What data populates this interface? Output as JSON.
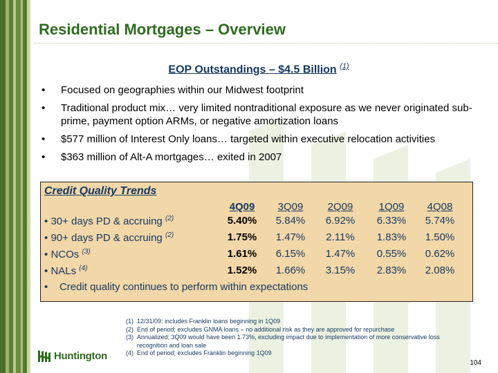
{
  "slide": {
    "title": "Residential Mortgages – Overview",
    "subtitle": "EOP Outstandings – $4.5 Billion",
    "subtitle_note": "(1)",
    "bullets": [
      "Focused on geographies within our Midwest footprint",
      "Traditional product mix… very limited nontraditional exposure as we never originated sub-prime, payment option ARMs, or negative amortization loans",
      "$577 million of Interest Only loans… targeted within executive relocation activities",
      "$363 million of Alt-A mortgages… exited in 2007"
    ],
    "bullet_glyph": "•",
    "page_number": "104"
  },
  "credit": {
    "title": "Credit Quality Trends",
    "columns": [
      "4Q09",
      "3Q09",
      "2Q09",
      "1Q09",
      "4Q08"
    ],
    "rows": [
      {
        "label": "30+ days PD & accruing",
        "note": "(2)",
        "values": [
          "5.40%",
          "5.84%",
          "6.92%",
          "6.33%",
          "5.74%"
        ]
      },
      {
        "label": "90+ days PD & accruing",
        "note": "(2)",
        "values": [
          "1.75%",
          "1.47%",
          "2.11%",
          "1.83%",
          "1.50%"
        ]
      },
      {
        "label": "NCOs",
        "note": "(3)",
        "values": [
          "1.61%",
          "6.15%",
          "1.47%",
          "0.55%",
          "0.62%"
        ]
      },
      {
        "label": "NALs",
        "note": "(4)",
        "values": [
          "1.52%",
          "1.66%",
          "3.15%",
          "2.83%",
          "2.08%"
        ]
      }
    ],
    "closing": "Credit quality continues to perform within expectations"
  },
  "footnotes": [
    {
      "num": "(1)",
      "text": "12/31/09; includes Franklin loans beginning in 1Q09"
    },
    {
      "num": "(2)",
      "text": "End of period; excludes GNMA loans – no additional risk as they are approved for repurchase"
    },
    {
      "num": "(3)",
      "text": "Annualized; 3Q09 would have been 1.73%, excluding impact due to implementation of more conservative loss recognition and loan sale"
    },
    {
      "num": "(4)",
      "text": "End of period; excludes Franklin beginning 1Q09"
    }
  ],
  "logo": {
    "text": "Huntington"
  },
  "colors": {
    "brand_green": "#2e6b1f",
    "navy": "#14375e",
    "box_fill": "#f2d7a9"
  }
}
